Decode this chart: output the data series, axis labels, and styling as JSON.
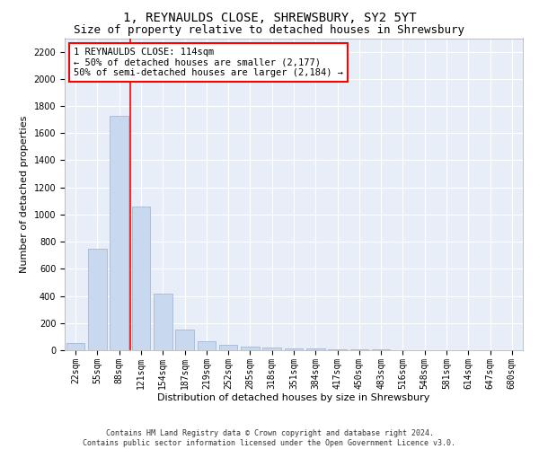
{
  "title": "1, REYNAULDS CLOSE, SHREWSBURY, SY2 5YT",
  "subtitle": "Size of property relative to detached houses in Shrewsbury",
  "xlabel": "Distribution of detached houses by size in Shrewsbury",
  "ylabel": "Number of detached properties",
  "bar_color": "#c8d8ee",
  "bar_edge_color": "#9ab0cc",
  "background_color": "#e8eef8",
  "grid_color": "#ffffff",
  "categories": [
    "22sqm",
    "55sqm",
    "88sqm",
    "121sqm",
    "154sqm",
    "187sqm",
    "219sqm",
    "252sqm",
    "285sqm",
    "318sqm",
    "351sqm",
    "384sqm",
    "417sqm",
    "450sqm",
    "483sqm",
    "516sqm",
    "548sqm",
    "581sqm",
    "614sqm",
    "647sqm",
    "680sqm"
  ],
  "values": [
    50,
    750,
    1730,
    1060,
    420,
    150,
    65,
    40,
    28,
    20,
    14,
    10,
    8,
    5,
    4,
    3,
    2,
    2,
    1,
    1,
    1
  ],
  "ylim": [
    0,
    2300
  ],
  "yticks": [
    0,
    200,
    400,
    600,
    800,
    1000,
    1200,
    1400,
    1600,
    1800,
    2000,
    2200
  ],
  "property_label": "1 REYNAULDS CLOSE: 114sqm",
  "annotation_line1": "← 50% of detached houses are smaller (2,177)",
  "annotation_line2": "50% of semi-detached houses are larger (2,184) →",
  "vline_x": 2.5,
  "footer_line1": "Contains HM Land Registry data © Crown copyright and database right 2024.",
  "footer_line2": "Contains public sector information licensed under the Open Government Licence v3.0.",
  "title_fontsize": 10,
  "subtitle_fontsize": 9,
  "ylabel_fontsize": 8,
  "xlabel_fontsize": 8,
  "tick_fontsize": 7,
  "annotation_fontsize": 7.5,
  "footer_fontsize": 6
}
